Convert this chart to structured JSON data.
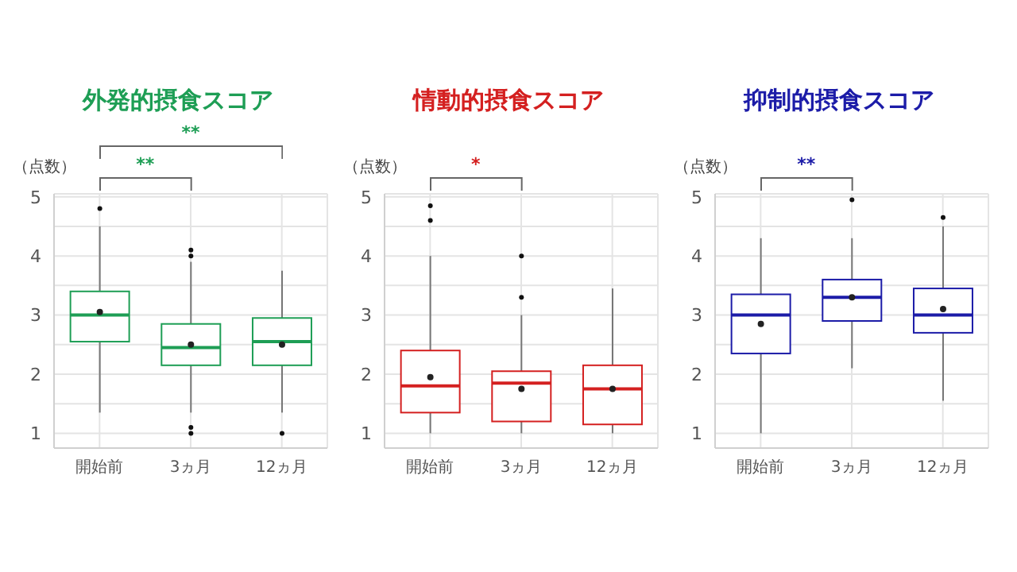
{
  "chart_data": [
    {
      "type": "box",
      "title": "外発的摂食スコア",
      "ylabel": "（点数）",
      "categories": [
        "開始前",
        "3ヵ月",
        "12ヵ月"
      ],
      "ylim": [
        0.75,
        5.05
      ],
      "yticks": [
        1,
        {
          "value": 1.5,
          "label": null
        },
        2,
        {
          "value": 2.5,
          "label": null
        },
        3,
        {
          "value": 3.5,
          "label": null
        },
        4,
        {
          "value": 4.5,
          "label": null
        },
        5
      ],
      "grid": true,
      "annotations": [
        "**",
        "**"
      ],
      "series": [
        {
          "color": "#1e9e55",
          "boxes": [
            {
              "low": 1.35,
              "q1": 2.55,
              "median": 3.0,
              "q3": 3.4,
              "high": 4.5,
              "mean": 3.05,
              "outliers": [
                4.8
              ]
            },
            {
              "low": 1.35,
              "q1": 2.15,
              "median": 2.45,
              "q3": 2.85,
              "high": 3.9,
              "mean": 2.5,
              "outliers": [
                4.1,
                4.0,
                1.1,
                1.0
              ]
            },
            {
              "low": 1.35,
              "q1": 2.15,
              "median": 2.55,
              "q3": 2.95,
              "high": 3.75,
              "mean": 2.5,
              "outliers": [
                1.0
              ]
            }
          ]
        }
      ]
    },
    {
      "type": "box",
      "title": "情動的摂食スコア",
      "ylabel": "（点数）",
      "categories": [
        "開始前",
        "3ヵ月",
        "12ヵ月"
      ],
      "ylim": [
        0.75,
        5.05
      ],
      "yticks": [
        1,
        {
          "value": 1.5,
          "label": null
        },
        2,
        {
          "value": 2.5,
          "label": null
        },
        3,
        {
          "value": 3.5,
          "label": null
        },
        4,
        {
          "value": 4.5,
          "label": null
        },
        5
      ],
      "grid": true,
      "annotations": [
        "*"
      ],
      "series": [
        {
          "color": "#d42020",
          "boxes": [
            {
              "low": 1.0,
              "q1": 1.35,
              "median": 1.8,
              "q3": 2.4,
              "high": 4.0,
              "mean": 1.95,
              "outliers": [
                4.85,
                4.6
              ]
            },
            {
              "low": 1.0,
              "q1": 1.2,
              "median": 1.85,
              "q3": 2.05,
              "high": 3.0,
              "mean": 1.75,
              "outliers": [
                4.0,
                3.3
              ]
            },
            {
              "low": 1.0,
              "q1": 1.15,
              "median": 1.75,
              "q3": 2.15,
              "high": 3.45,
              "mean": 1.75
            }
          ]
        }
      ]
    },
    {
      "type": "box",
      "title": "抑制的摂食スコア",
      "ylabel": "（点数）",
      "categories": [
        "開始前",
        "3ヵ月",
        "12ヵ月"
      ],
      "ylim": [
        0.75,
        5.05
      ],
      "yticks": [
        1,
        {
          "value": 1.5,
          "label": null
        },
        2,
        {
          "value": 2.5,
          "label": null
        },
        3,
        {
          "value": 3.5,
          "label": null
        },
        4,
        {
          "value": 4.5,
          "label": null
        },
        5
      ],
      "grid": true,
      "annotations": [
        "**"
      ],
      "series": [
        {
          "color": "#1c1ca8",
          "boxes": [
            {
              "low": 1.0,
              "q1": 2.35,
              "median": 3.0,
              "q3": 3.35,
              "high": 4.3,
              "mean": 2.85
            },
            {
              "low": 2.1,
              "q1": 2.9,
              "median": 3.3,
              "q3": 3.6,
              "high": 4.3,
              "mean": 3.3,
              "outliers": [
                4.95
              ]
            },
            {
              "low": 1.55,
              "q1": 2.7,
              "median": 3.0,
              "q3": 3.45,
              "high": 4.5,
              "mean": 3.1,
              "outliers": [
                4.65
              ]
            }
          ]
        }
      ]
    }
  ]
}
